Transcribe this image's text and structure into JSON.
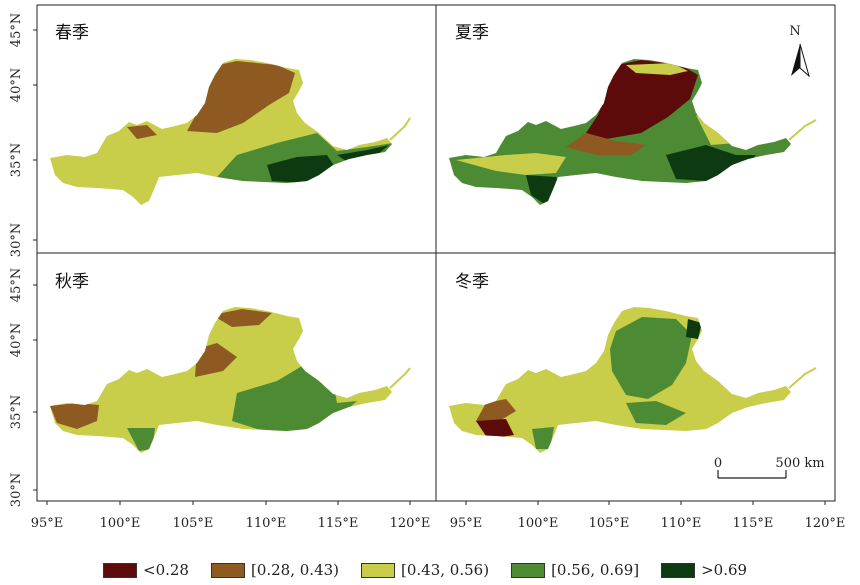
{
  "panels": [
    {
      "title": "春季",
      "season": "spring"
    },
    {
      "title": "夏季",
      "season": "summer"
    },
    {
      "title": "秋季",
      "season": "autumn"
    },
    {
      "title": "冬季",
      "season": "winter"
    }
  ],
  "axes": {
    "x_ticks": [
      "95°E",
      "100°E",
      "105°E",
      "110°E",
      "115°E",
      "120°E"
    ],
    "x_ticks_right": [
      "95°E",
      "100°E",
      "105°E",
      "110°E",
      "115°E",
      "120°E"
    ],
    "y_ticks": [
      "45°N",
      "40°N",
      "35°N",
      "30°N"
    ]
  },
  "north_arrow": "N",
  "scale_bar": {
    "start": "0",
    "end": "500 km"
  },
  "legend": [
    {
      "label": "<0.28",
      "color": "#5c0a0a"
    },
    {
      "label": "[0.28, 0.43)",
      "color": "#8f5a22"
    },
    {
      "label": "[0.43, 0.56)",
      "color": "#c8cd4a"
    },
    {
      "label": "[0.56, 0.69]",
      "color": "#4c8a34"
    },
    {
      "label": ">0.69",
      "color": "#0e3a12"
    }
  ]
}
